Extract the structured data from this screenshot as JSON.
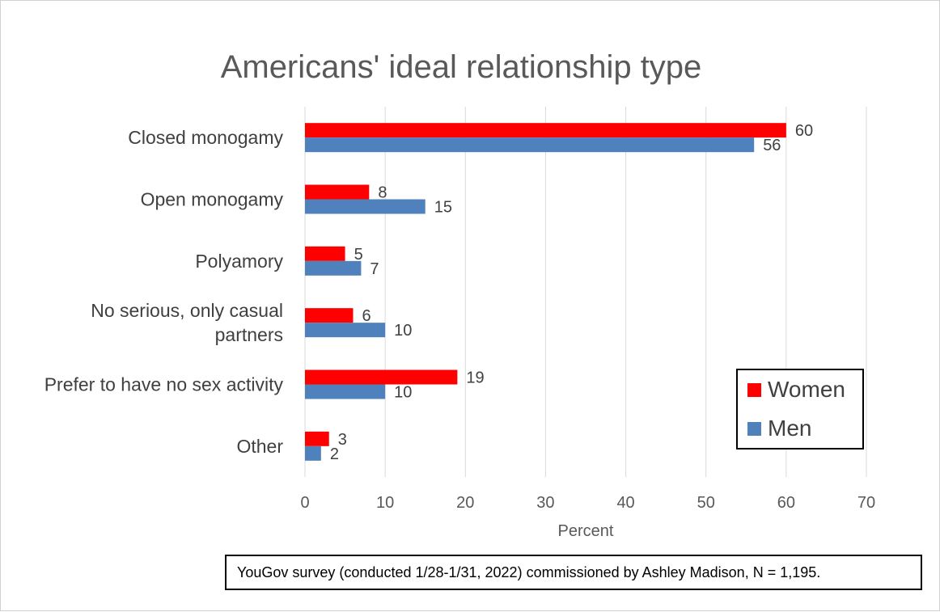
{
  "chart_data": {
    "type": "bar",
    "orientation": "horizontal",
    "title": "Americans' ideal relationship type",
    "xlabel": "Percent",
    "ylabel": "",
    "xlim": [
      0,
      70
    ],
    "xticks": [
      0,
      10,
      20,
      30,
      40,
      50,
      60,
      70
    ],
    "grid": true,
    "categories": [
      "Closed monogamy",
      "Open monogamy",
      "Polyamory",
      "No serious, only casual partners",
      "Prefer to have no sex activity",
      "Other"
    ],
    "category_lines": [
      [
        "Closed monogamy"
      ],
      [
        "Open monogamy"
      ],
      [
        "Polyamory"
      ],
      [
        "No serious, only casual",
        "partners"
      ],
      [
        "Prefer to have no sex activity"
      ],
      [
        "Other"
      ]
    ],
    "series": [
      {
        "name": "Women",
        "color": "#ff0000",
        "values": [
          60,
          8,
          5,
          6,
          19,
          3
        ]
      },
      {
        "name": "Men",
        "color": "#4f81bd",
        "values": [
          56,
          15,
          7,
          10,
          10,
          2
        ]
      }
    ],
    "legend_position": "bottom-right",
    "annotation": "YouGov survey (conducted 1/28-1/31, 2022) commissioned by Ashley Madison, N = 1,195."
  }
}
